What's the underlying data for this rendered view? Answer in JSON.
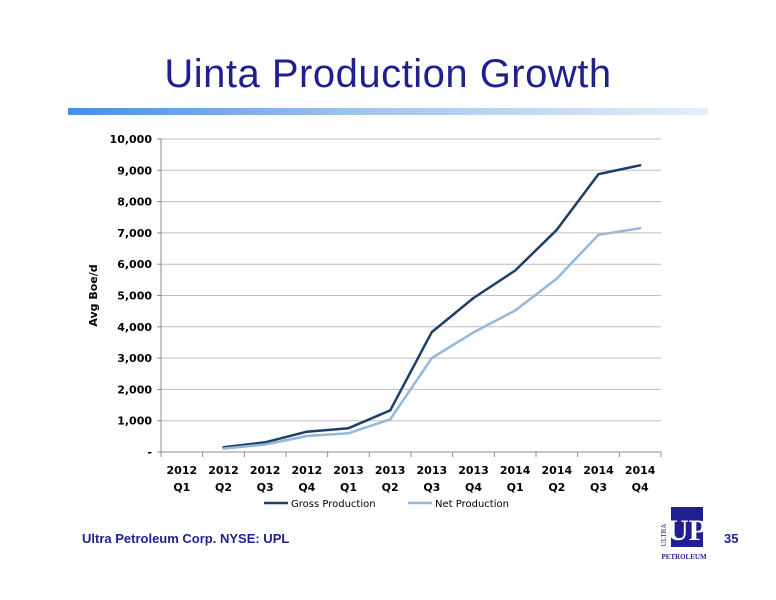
{
  "slide": {
    "title": "Uinta Production Growth",
    "footer": "Ultra Petroleum Corp. NYSE: UPL",
    "page_number": "35",
    "logo": {
      "mark": "UP",
      "side_text": "ULTRA",
      "bottom_text": "PETROLEUM",
      "color": "#1f1f8f"
    }
  },
  "chart_data": {
    "type": "line",
    "ylabel": "Avg  Boe/d",
    "ylim": [
      0,
      10000
    ],
    "yticks": [
      {
        "value": 0,
        "label": "-"
      },
      {
        "value": 1000,
        "label": "1,000"
      },
      {
        "value": 2000,
        "label": "2,000"
      },
      {
        "value": 3000,
        "label": "3,000"
      },
      {
        "value": 4000,
        "label": "4,000"
      },
      {
        "value": 5000,
        "label": "5,000"
      },
      {
        "value": 6000,
        "label": "6,000"
      },
      {
        "value": 7000,
        "label": "7,000"
      },
      {
        "value": 8000,
        "label": "8,000"
      },
      {
        "value": 9000,
        "label": "9,000"
      },
      {
        "value": 10000,
        "label": "10,000"
      }
    ],
    "grid": true,
    "legend": "bottom",
    "categories": [
      {
        "year": "2012",
        "quarter": "Q1"
      },
      {
        "year": "2012",
        "quarter": "Q2"
      },
      {
        "year": "2012",
        "quarter": "Q3"
      },
      {
        "year": "2012",
        "quarter": "Q4"
      },
      {
        "year": "2013",
        "quarter": "Q1"
      },
      {
        "year": "2013",
        "quarter": "Q2"
      },
      {
        "year": "2013",
        "quarter": "Q3"
      },
      {
        "year": "2013",
        "quarter": "Q4"
      },
      {
        "year": "2014",
        "quarter": "Q1"
      },
      {
        "year": "2014",
        "quarter": "Q2"
      },
      {
        "year": "2014",
        "quarter": "Q3"
      },
      {
        "year": "2014",
        "quarter": "Q4"
      }
    ],
    "series": [
      {
        "name": "Gross Production",
        "color": "#1f3f6b",
        "values": [
          null,
          150,
          310,
          650,
          760,
          1330,
          3830,
          4920,
          5800,
          7100,
          8880,
          9160
        ]
      },
      {
        "name": "Net Production",
        "color": "#95b7d9",
        "values": [
          null,
          110,
          240,
          510,
          600,
          1040,
          3000,
          3820,
          4520,
          5540,
          6940,
          7150
        ]
      }
    ]
  }
}
